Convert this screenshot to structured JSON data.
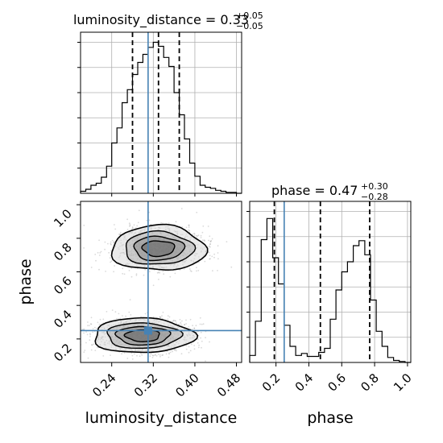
{
  "chart_data": {
    "type": "corner",
    "parameters": [
      "luminosity_distance",
      "phase"
    ],
    "truths": {
      "luminosity_distance": 0.31,
      "phase": 0.25
    },
    "panels": {
      "luminosity_distance": {
        "title": {
          "prefix": "luminosity_distance = 0.33",
          "plus": "+0.05",
          "minus": "−0.05"
        },
        "xlim": [
          0.18,
          0.49
        ],
        "quantiles": [
          0.28,
          0.33,
          0.37
        ],
        "bin_edges": [
          0.18,
          0.19,
          0.2,
          0.21,
          0.22,
          0.23,
          0.24,
          0.25,
          0.26,
          0.27,
          0.28,
          0.29,
          0.3,
          0.31,
          0.32,
          0.33,
          0.34,
          0.35,
          0.36,
          0.37,
          0.38,
          0.39,
          0.4,
          0.41,
          0.42,
          0.43,
          0.44,
          0.45,
          0.46,
          0.47,
          0.48,
          0.49
        ],
        "counts": [
          2,
          4,
          8,
          10,
          16,
          27,
          50,
          65,
          90,
          103,
          118,
          130,
          138,
          145,
          150,
          146,
          135,
          126,
          100,
          78,
          54,
          30,
          17,
          8,
          6,
          5,
          3,
          2,
          1,
          1,
          0
        ],
        "ymax": 160
      },
      "phase": {
        "title": {
          "prefix": "phase = 0.47",
          "plus": "+0.30",
          "minus": "−0.28"
        },
        "xlim": [
          0.04,
          1.02
        ],
        "quantiles": [
          0.19,
          0.47,
          0.77
        ],
        "bin_edges": [
          0.04,
          0.075,
          0.11,
          0.145,
          0.18,
          0.215,
          0.25,
          0.285,
          0.32,
          0.355,
          0.39,
          0.425,
          0.46,
          0.495,
          0.53,
          0.565,
          0.6,
          0.635,
          0.67,
          0.705,
          0.74,
          0.775,
          0.81,
          0.845,
          0.88,
          0.915,
          0.95,
          0.985,
          1.02
        ],
        "counts": [
          7,
          41,
          122,
          143,
          104,
          78,
          37,
          16,
          7,
          9,
          6,
          6,
          10,
          14,
          43,
          72,
          90,
          100,
          116,
          121,
          107,
          62,
          31,
          16,
          5,
          2,
          1,
          0
        ],
        "ymax": 160
      }
    },
    "joint": {
      "xlim": [
        0.18,
        0.49
      ],
      "ylim": [
        0.06,
        1.02
      ],
      "modes": [
        {
          "x": 0.33,
          "y": 0.74,
          "sx": 0.044,
          "sy": 0.065,
          "samples": 1200
        },
        {
          "x": 0.3,
          "y": 0.22,
          "sx": 0.047,
          "sy": 0.05,
          "samples": 1400
        }
      ],
      "density_levels": [
        0.12,
        0.32,
        0.55,
        0.78
      ]
    },
    "axes": {
      "x_labels": [
        "luminosity_distance",
        "phase"
      ],
      "y_label": "phase",
      "luminosity_distance_ticks": [
        "0.24",
        "0.32",
        "0.40",
        "0.48"
      ],
      "phase_x_ticks": [
        "0.2",
        "0.4",
        "0.6",
        "0.8",
        "1.0"
      ],
      "phase_y_ticks": [
        "0.2",
        "0.4",
        "0.6",
        "0.8",
        "1.0"
      ]
    },
    "colors": {
      "line": "#000000",
      "truth": "#4682b4",
      "grid": "#b0b0b0",
      "points": "#555555"
    },
    "grid": true
  }
}
